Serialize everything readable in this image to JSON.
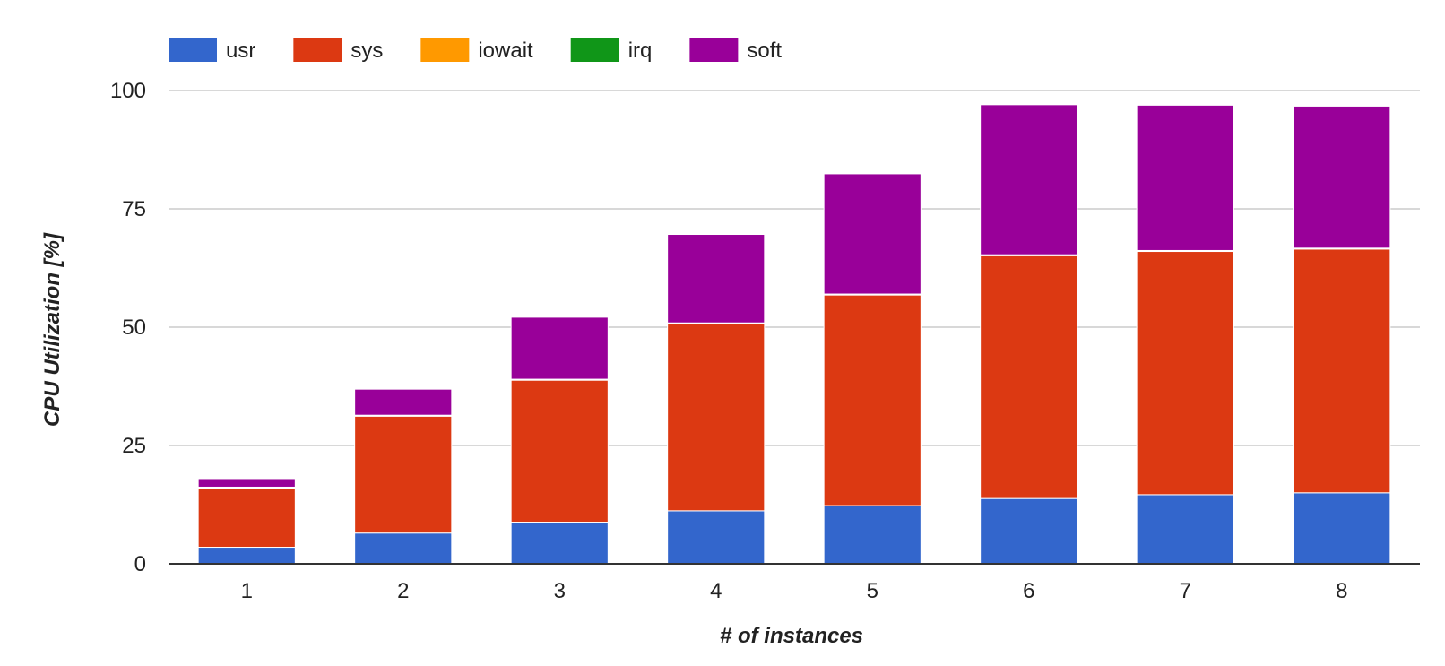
{
  "chart_data": {
    "type": "bar",
    "stacked": true,
    "categories": [
      "1",
      "2",
      "3",
      "4",
      "5",
      "6",
      "7",
      "8"
    ],
    "series": [
      {
        "name": "usr",
        "color": "#3366cc",
        "values": [
          3.5,
          6.5,
          8.8,
          11.2,
          12.3,
          13.8,
          14.6,
          15.0
        ]
      },
      {
        "name": "sys",
        "color": "#dc3912",
        "values": [
          12.5,
          24.7,
          30.0,
          39.5,
          44.5,
          51.3,
          51.4,
          51.5
        ]
      },
      {
        "name": "iowait",
        "color": "#ff9900",
        "values": [
          0.1,
          0.1,
          0.1,
          0.1,
          0.1,
          0.1,
          0.1,
          0.1
        ]
      },
      {
        "name": "irq",
        "color": "#109618",
        "values": [
          0.1,
          0.1,
          0.1,
          0.1,
          0.1,
          0.1,
          0.1,
          0.1
        ]
      },
      {
        "name": "soft",
        "color": "#990099",
        "values": [
          1.8,
          5.5,
          13.1,
          18.7,
          25.4,
          31.7,
          30.7,
          30.0
        ]
      }
    ],
    "xlabel": "# of instances",
    "ylabel": "CPU Utilization [%]",
    "ylim": [
      0,
      100
    ],
    "yticks": [
      0,
      25,
      50,
      75,
      100
    ],
    "grid": true,
    "legend_position": "top-left"
  }
}
